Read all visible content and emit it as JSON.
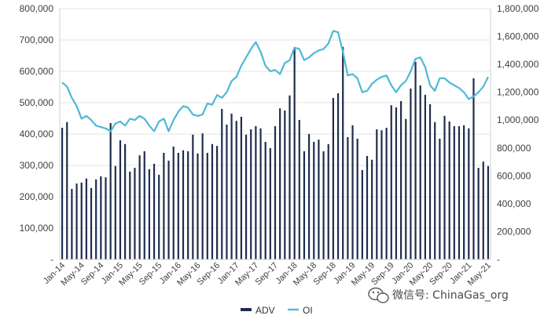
{
  "chart_data": {
    "type": "bar",
    "title": "",
    "xlabel": "",
    "ylabel": "",
    "ylim": [
      0,
      800000
    ],
    "y2lim": [
      0,
      1800000
    ],
    "grid": true,
    "legend_position": "bottom",
    "yticks": [
      "-",
      "100,000",
      "200,000",
      "300,000",
      "400,000",
      "500,000",
      "600,000",
      "700,000",
      "800,000"
    ],
    "y2ticks": [
      "-",
      "200,000",
      "400,000",
      "600,000",
      "800,000",
      "1,000,000",
      "1,200,000",
      "1,400,000",
      "1,600,000",
      "1,800,000"
    ],
    "xticks": [
      {
        "index": 0,
        "label": "Jan-14"
      },
      {
        "index": 4,
        "label": "May-14"
      },
      {
        "index": 8,
        "label": "Sep-14"
      },
      {
        "index": 12,
        "label": "Jan-15"
      },
      {
        "index": 16,
        "label": "May-15"
      },
      {
        "index": 20,
        "label": "Sep-15"
      },
      {
        "index": 24,
        "label": "Jan-16"
      },
      {
        "index": 28,
        "label": "May-16"
      },
      {
        "index": 32,
        "label": "Sep-16"
      },
      {
        "index": 36,
        "label": "Jan-17"
      },
      {
        "index": 40,
        "label": "May-17"
      },
      {
        "index": 44,
        "label": "Sep-17"
      },
      {
        "index": 48,
        "label": "Jan-18"
      },
      {
        "index": 52,
        "label": "May-18"
      },
      {
        "index": 56,
        "label": "Sep-18"
      },
      {
        "index": 60,
        "label": "Jan-19"
      },
      {
        "index": 64,
        "label": "May-19"
      },
      {
        "index": 68,
        "label": "Sep-19"
      },
      {
        "index": 72,
        "label": "Jan-20"
      },
      {
        "index": 76,
        "label": "May-20"
      },
      {
        "index": 80,
        "label": "Sep-20"
      },
      {
        "index": 84,
        "label": "Jan-21"
      },
      {
        "index": 88,
        "label": "May-21"
      }
    ],
    "series": [
      {
        "name": "ADV",
        "type": "bar",
        "axis": "left",
        "color": "#1f2d4d",
        "values": [
          420000,
          438000,
          225000,
          242000,
          245000,
          258000,
          228000,
          255000,
          265000,
          262000,
          435000,
          298000,
          380000,
          368000,
          280000,
          292000,
          332000,
          345000,
          288000,
          305000,
          270000,
          340000,
          315000,
          360000,
          340000,
          348000,
          345000,
          398000,
          338000,
          402000,
          340000,
          368000,
          362000,
          480000,
          430000,
          465000,
          442000,
          455000,
          398000,
          415000,
          425000,
          418000,
          375000,
          355000,
          425000,
          482000,
          475000,
          523000,
          675000,
          445000,
          345000,
          400000,
          375000,
          382000,
          345000,
          368000,
          515000,
          530000,
          678000,
          390000,
          428000,
          385000,
          285000,
          330000,
          318000,
          415000,
          412000,
          420000,
          492000,
          485000,
          505000,
          448000,
          545000,
          630000,
          555000,
          525000,
          495000,
          438000,
          385000,
          458000,
          440000,
          425000,
          425000,
          428000,
          418000,
          578000,
          292000,
          312000,
          298000
        ]
      },
      {
        "name": "OI",
        "type": "line",
        "axis": "right",
        "color": "#4fb8d6",
        "values": [
          1270000,
          1240000,
          1160000,
          1100000,
          1010000,
          1030000,
          1000000,
          960000,
          950000,
          940000,
          920000,
          975000,
          990000,
          960000,
          1010000,
          1000000,
          1030000,
          1010000,
          960000,
          920000,
          990000,
          1010000,
          920000,
          1000000,
          1060000,
          1100000,
          1090000,
          1040000,
          1030000,
          1040000,
          1120000,
          1110000,
          1180000,
          1160000,
          1200000,
          1280000,
          1310000,
          1390000,
          1450000,
          1510000,
          1560000,
          1490000,
          1390000,
          1350000,
          1360000,
          1330000,
          1410000,
          1430000,
          1520000,
          1510000,
          1430000,
          1450000,
          1480000,
          1500000,
          1510000,
          1550000,
          1640000,
          1630000,
          1490000,
          1320000,
          1330000,
          1300000,
          1200000,
          1210000,
          1260000,
          1290000,
          1310000,
          1320000,
          1250000,
          1200000,
          1250000,
          1280000,
          1350000,
          1440000,
          1450000,
          1380000,
          1250000,
          1210000,
          1300000,
          1300000,
          1270000,
          1250000,
          1230000,
          1200000,
          1150000,
          1170000,
          1200000,
          1240000,
          1310000
        ]
      }
    ]
  },
  "watermark": {
    "text": "微信号: ChinaGas_org",
    "icon": "wechat-icon"
  }
}
